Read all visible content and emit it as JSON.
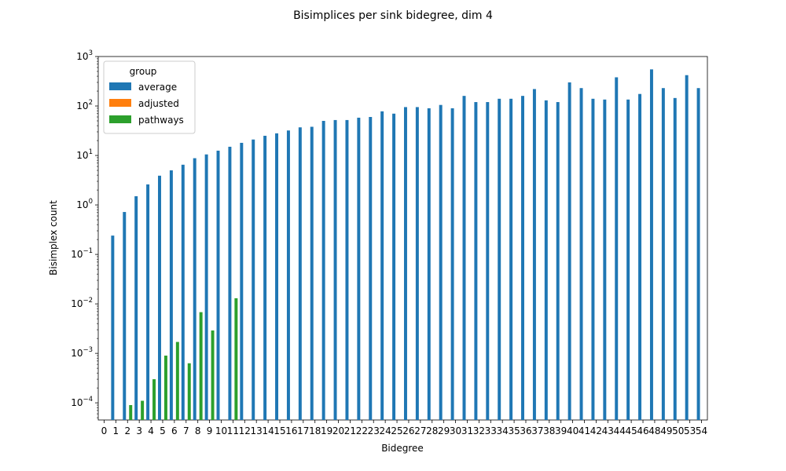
{
  "chart_data": {
    "type": "bar",
    "title": "Bisimplices per sink bidegree, dim 4",
    "xlabel": "Bidegree",
    "ylabel": "Bisimplex count",
    "yscale": "log",
    "ylim": [
      4.5e-05,
      1000
    ],
    "y_ticks": [
      {
        "value": 0.0001,
        "base": "10",
        "exp": "−4"
      },
      {
        "value": 0.001,
        "base": "10",
        "exp": "−3"
      },
      {
        "value": 0.01,
        "base": "10",
        "exp": "−2"
      },
      {
        "value": 0.1,
        "base": "10",
        "exp": "−1"
      },
      {
        "value": 1,
        "base": "10",
        "exp": "0"
      },
      {
        "value": 10,
        "base": "10",
        "exp": "1"
      },
      {
        "value": 100,
        "base": "10",
        "exp": "2"
      },
      {
        "value": 1000,
        "base": "10",
        "exp": "3"
      }
    ],
    "categories": [
      "0",
      "1",
      "2",
      "3",
      "4",
      "5",
      "6",
      "7",
      "8",
      "9",
      "10",
      "11",
      "12",
      "13",
      "14",
      "15",
      "16",
      "17",
      "18",
      "19",
      "20",
      "21",
      "22",
      "23",
      "24",
      "25",
      "26",
      "27",
      "28",
      "29",
      "30",
      "31",
      "32",
      "33",
      "34",
      "35",
      "36",
      "37",
      "38",
      "39",
      "40",
      "41",
      "42",
      "43",
      "44",
      "45",
      "46",
      "48",
      "49",
      "50",
      "53",
      "54"
    ],
    "legend": {
      "title": "group",
      "position": "top-left"
    },
    "series": [
      {
        "name": "average",
        "color": "#1f77b4",
        "values": [
          null,
          0.24,
          0.72,
          1.5,
          2.6,
          3.9,
          5.0,
          6.5,
          8.8,
          10.5,
          12.5,
          15.0,
          18.0,
          21.0,
          25.0,
          28.0,
          32.0,
          37.0,
          38.0,
          50.0,
          52.0,
          52.0,
          58.0,
          60.0,
          78.0,
          70.0,
          95.0,
          95.0,
          90.0,
          105.0,
          90.0,
          160.0,
          120.0,
          120.0,
          140.0,
          140.0,
          160.0,
          220.0,
          130.0,
          120.0,
          300.0,
          230.0,
          140.0,
          135.0,
          380.0,
          135.0,
          175.0,
          550.0,
          230.0,
          145.0,
          420.0,
          230.0
        ]
      },
      {
        "name": "adjusted",
        "color": "#ff7f0e",
        "values": [
          null,
          null,
          null,
          null,
          null,
          null,
          null,
          null,
          null,
          null,
          null,
          null,
          null,
          null,
          null,
          null,
          null,
          null,
          null,
          null,
          null,
          null,
          null,
          null,
          null,
          null,
          null,
          null,
          null,
          null,
          null,
          null,
          null,
          null,
          null,
          null,
          null,
          null,
          null,
          null,
          null,
          null,
          null,
          null,
          null,
          null,
          null,
          null,
          null,
          null,
          null,
          null
        ]
      },
      {
        "name": "pathways",
        "color": "#2ca02c",
        "values": [
          null,
          null,
          9e-05,
          0.00011,
          0.0003,
          0.0009,
          0.0017,
          0.00063,
          0.0068,
          0.0029,
          null,
          0.013,
          null,
          null,
          null,
          null,
          null,
          null,
          null,
          null,
          null,
          null,
          null,
          null,
          null,
          null,
          null,
          null,
          null,
          null,
          null,
          null,
          null,
          null,
          null,
          null,
          null,
          null,
          null,
          null,
          null,
          null,
          null,
          null,
          null,
          null,
          null,
          null,
          null,
          null,
          null,
          null
        ]
      }
    ]
  }
}
